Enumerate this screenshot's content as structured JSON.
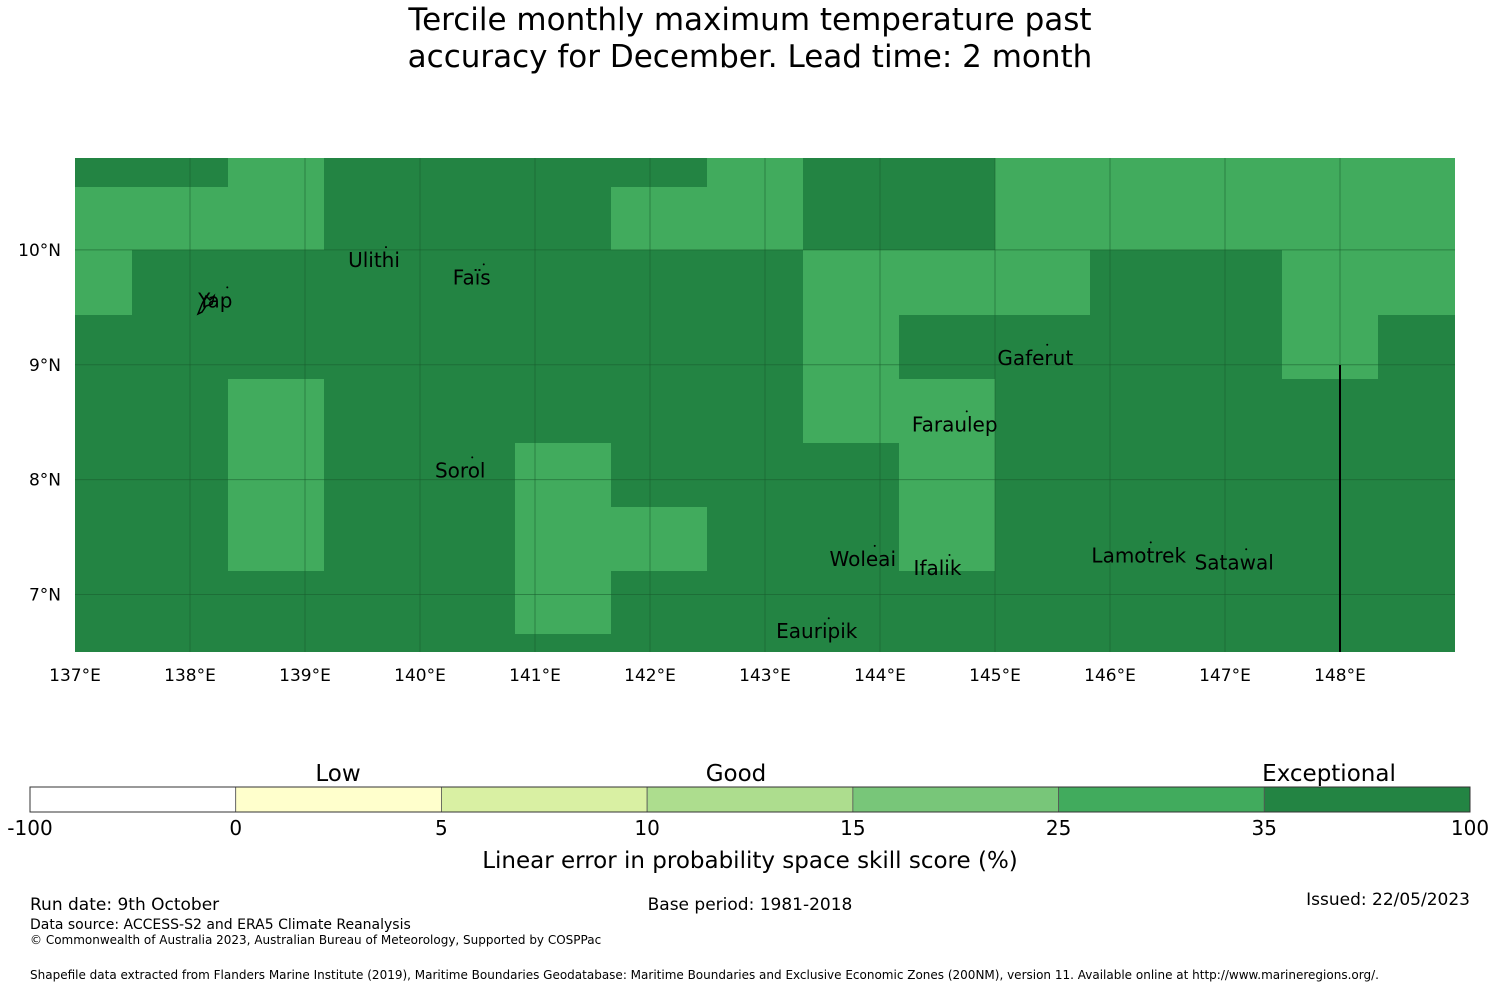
{
  "title": {
    "line1": "Tercile monthly maximum temperature past",
    "line2": "accuracy for December. Lead time: 2 month"
  },
  "map": {
    "lon_range": [
      137,
      149
    ],
    "lat_range": [
      6.5,
      10.8
    ],
    "x_ticks": [
      "137°E",
      "138°E",
      "139°E",
      "140°E",
      "141°E",
      "142°E",
      "143°E",
      "144°E",
      "145°E",
      "146°E",
      "147°E",
      "148°E"
    ],
    "y_ticks": [
      "10°N",
      "9°N",
      "8°N",
      "7°N"
    ],
    "colors": {
      "band_25_35": "#41ab5d",
      "band_35_100": "#238443",
      "grid": "#1a5c2e"
    },
    "places": [
      {
        "name": "Ulithi",
        "lon": 139.6,
        "lat": 9.85
      },
      {
        "name": "Faïs",
        "lon": 140.45,
        "lat": 9.7
      },
      {
        "name": "Yap",
        "lon": 138.22,
        "lat": 9.5
      },
      {
        "name": "Gaferut",
        "lon": 145.35,
        "lat": 9.0
      },
      {
        "name": "Faraulep",
        "lon": 144.65,
        "lat": 8.42
      },
      {
        "name": "Sorol",
        "lon": 140.35,
        "lat": 8.02
      },
      {
        "name": "Woleai",
        "lon": 143.85,
        "lat": 7.25
      },
      {
        "name": "Ifalik",
        "lon": 144.5,
        "lat": 7.17
      },
      {
        "name": "Lamotrek",
        "lon": 146.25,
        "lat": 7.28
      },
      {
        "name": "Satawal",
        "lon": 147.08,
        "lat": 7.22
      },
      {
        "name": "Eauripik",
        "lon": 143.45,
        "lat": 6.62
      }
    ]
  },
  "colorbar": {
    "categories": [
      "Low",
      "Good",
      "Exceptional"
    ],
    "ticks": [
      "-100",
      "0",
      "5",
      "10",
      "15",
      "25",
      "35",
      "100"
    ],
    "colors": [
      "#ffffff",
      "#ffffcc",
      "#d9f0a3",
      "#addd8e",
      "#78c679",
      "#41ab5d",
      "#238443"
    ],
    "label": "Linear error in probability space skill score (%)"
  },
  "footer": {
    "run_date": "Run date: 9th October",
    "base_period": "Base period: 1981-2018",
    "issued": "Issued: 22/05/2023",
    "data_source": "Data source: ACCESS-S2 and ERA5 Climate Reanalysis",
    "copyright": "© Commonwealth of Australia 2023, Australian Bureau of Meteorology, Supported by COSPPac",
    "shapefile": "Shapefile data extracted from Flanders Marine Institute (2019), Maritime Boundaries Geodatabase: Maritime Boundaries and Exclusive Economic Zones (200NM), version 11. Available online at http://www.marineregions.org/."
  }
}
